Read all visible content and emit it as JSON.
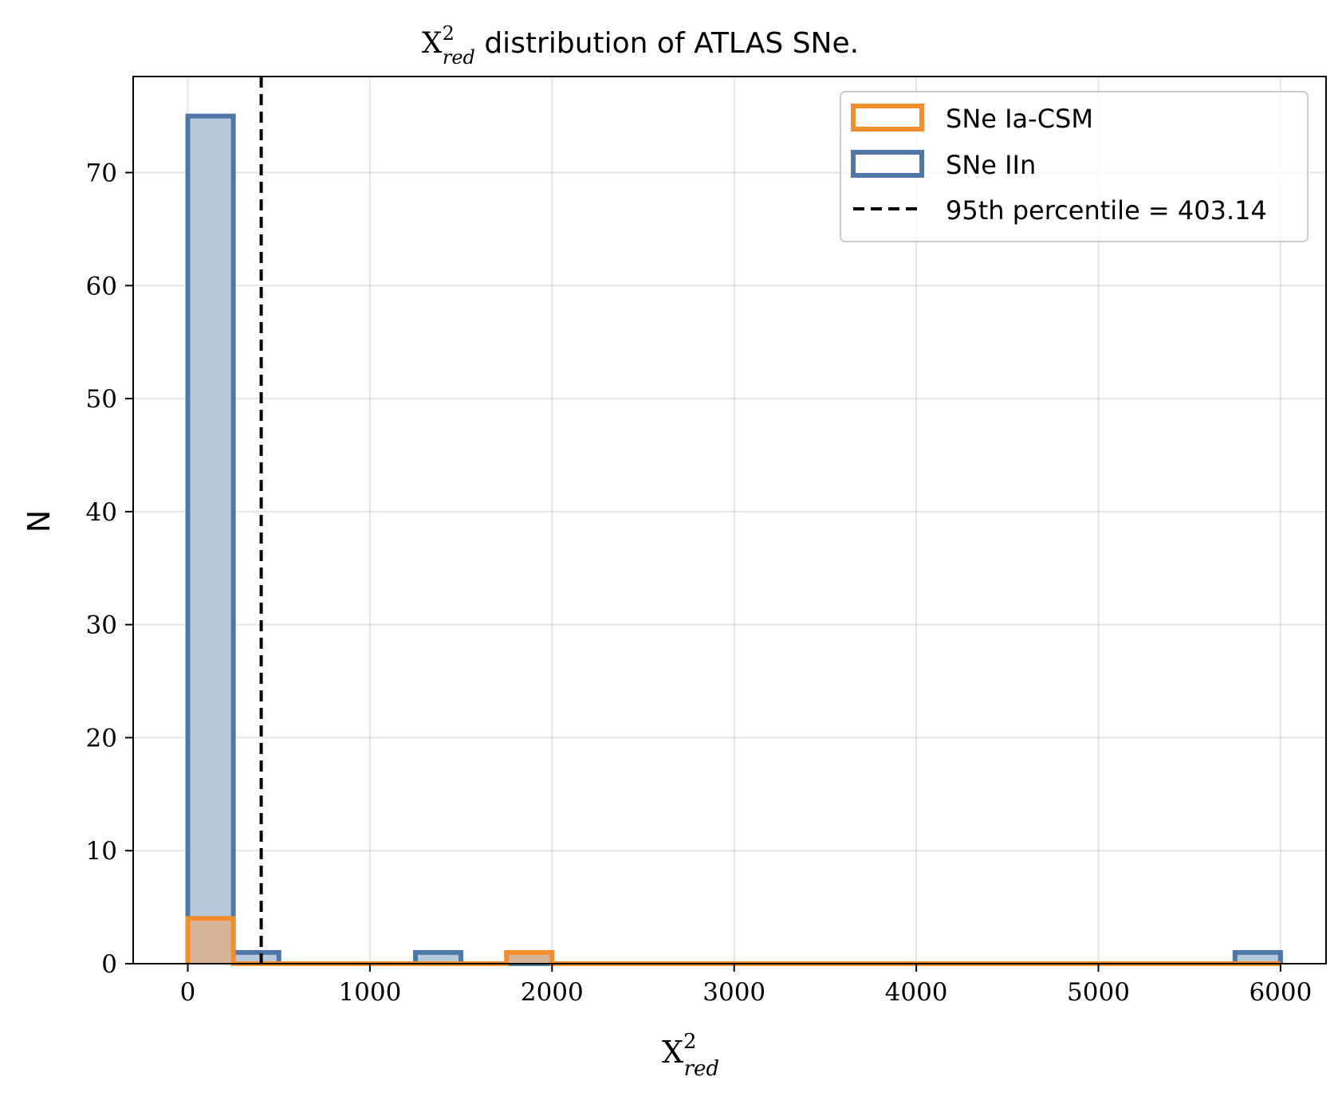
{
  "chart_data": {
    "type": "bar",
    "title": {
      "symbol": "X",
      "superscript": "2",
      "subscript": "red",
      "text": " distribution of ATLAS SNe."
    },
    "xlabel": {
      "symbol": "X",
      "superscript": "2",
      "subscript": "red"
    },
    "ylabel": "N",
    "xlim": [
      -300,
      6250
    ],
    "ylim": [
      0,
      78.5
    ],
    "xticks": [
      0,
      1000,
      2000,
      3000,
      4000,
      5000,
      6000
    ],
    "yticks": [
      0,
      10,
      20,
      30,
      40,
      50,
      60,
      70
    ],
    "grid": true,
    "legend_position": "top-right",
    "bin_edges": [
      0,
      250,
      500,
      750,
      1000,
      1250,
      1500,
      1750,
      2000,
      2250,
      2500,
      2750,
      3000,
      3250,
      3500,
      3750,
      4000,
      4250,
      4500,
      4750,
      5000,
      5250,
      5500,
      5750,
      6000
    ],
    "series": [
      {
        "name": "SNe IIn",
        "color": "#4e76a6",
        "fill": "#b8c8dc",
        "values": [
          75,
          1,
          0,
          0,
          0,
          1,
          0,
          0,
          0,
          0,
          0,
          0,
          0,
          0,
          0,
          0,
          0,
          0,
          0,
          0,
          0,
          0,
          0,
          1
        ]
      },
      {
        "name": "SNe Ia-CSM",
        "color": "#f28e2b",
        "fill": "#d6b49a",
        "values": [
          4,
          0,
          0,
          0,
          0,
          0,
          0,
          1,
          0,
          0,
          0,
          0,
          0,
          0,
          0,
          0,
          0,
          0,
          0,
          0,
          0,
          0,
          0,
          0
        ]
      }
    ],
    "reference_line": {
      "label": "95th percentile = 403.14",
      "x": 403.14,
      "style": "dashed",
      "color": "#000000"
    }
  }
}
